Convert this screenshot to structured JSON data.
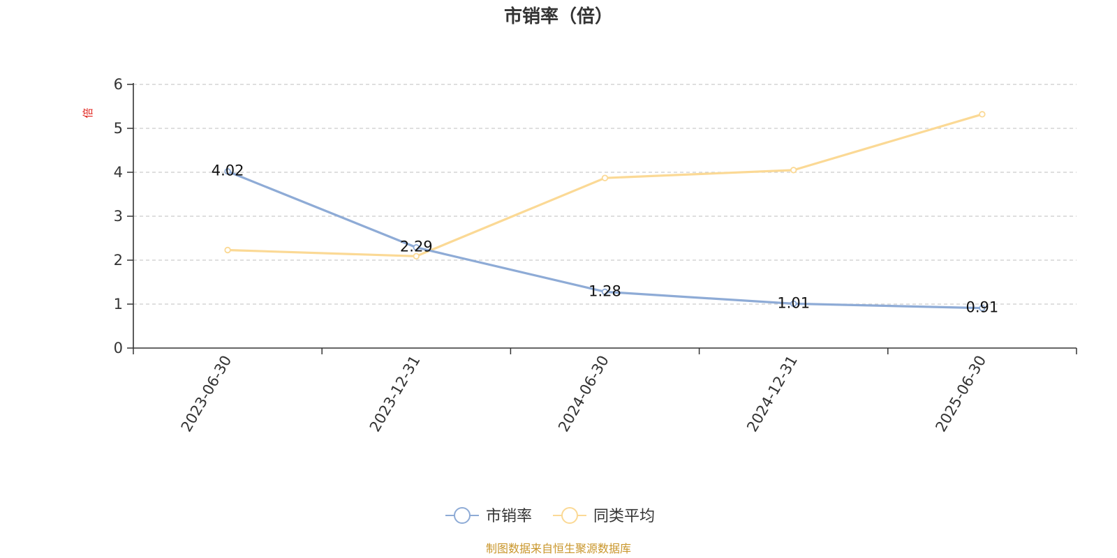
{
  "chart_data": {
    "type": "line",
    "title": "市销率（倍）",
    "ylabel": "倍",
    "xlabel": "",
    "categories": [
      "2023-06-30",
      "2023-12-31",
      "2024-06-30",
      "2024-12-31",
      "2025-06-30"
    ],
    "ylim": [
      0,
      6
    ],
    "yticks": [
      0,
      1,
      2,
      3,
      4,
      5,
      6
    ],
    "grid": true,
    "legend_position": "bottom",
    "series": [
      {
        "name": "市销率",
        "values": [
          4.02,
          2.29,
          1.28,
          1.01,
          0.91
        ],
        "color": "#8eabd6",
        "show_labels": true,
        "labels": [
          "4.02",
          "2.29",
          "1.28",
          "1.01",
          "0.91"
        ]
      },
      {
        "name": "同类平均",
        "values": [
          2.23,
          2.09,
          3.87,
          4.05,
          5.32
        ],
        "color": "#fbd995",
        "show_labels": false
      }
    ],
    "source": "制图数据来自恒生聚源数据库"
  },
  "colors": {
    "axis": "#333333",
    "grid": "#cccccc",
    "ylabel": "#e0201a",
    "source": "#c9962b"
  }
}
